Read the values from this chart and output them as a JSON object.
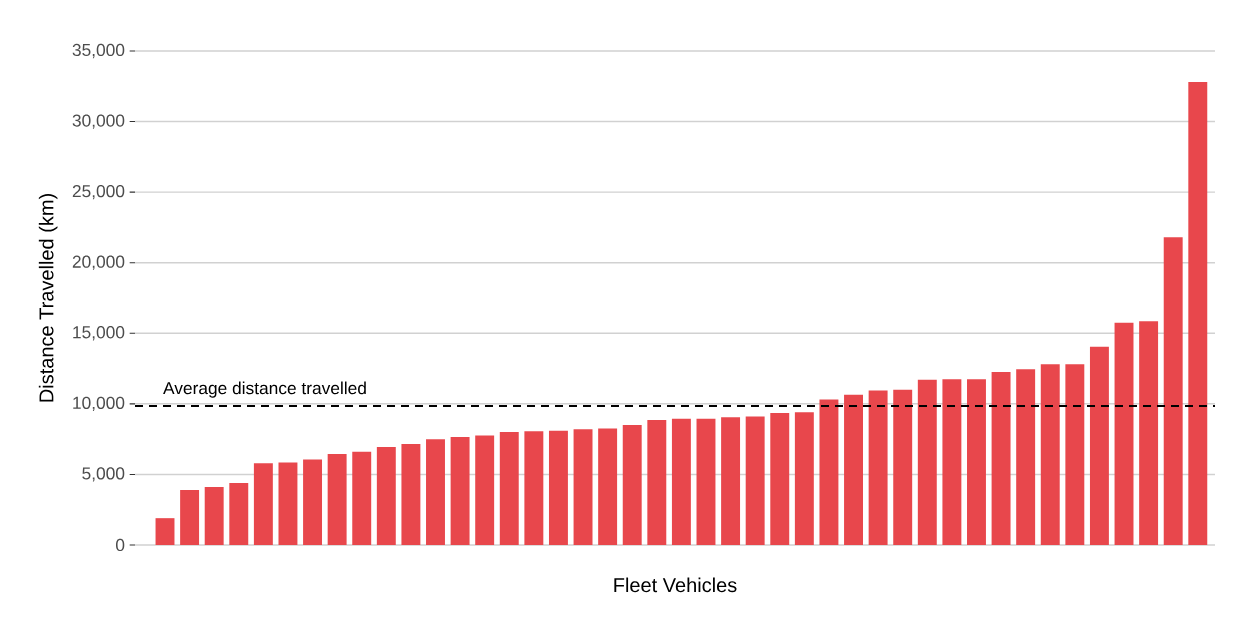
{
  "chart_data": {
    "type": "bar",
    "xlabel": "Fleet Vehicles",
    "ylabel": "Distance Travelled (km)",
    "categories": [
      null,
      null,
      null,
      null,
      null,
      null,
      null,
      null,
      null,
      null,
      null,
      null,
      null,
      null,
      null,
      null,
      null,
      null,
      null,
      null,
      null,
      null,
      null,
      null,
      null,
      null,
      null,
      null,
      null,
      null,
      null,
      null,
      null,
      null,
      null,
      null,
      null,
      null,
      null,
      null,
      null,
      null,
      null
    ],
    "values": [
      1900,
      3900,
      4100,
      4400,
      5800,
      5850,
      6050,
      6450,
      6600,
      6950,
      7150,
      7500,
      7650,
      7750,
      8000,
      8050,
      8100,
      8200,
      8250,
      8500,
      8850,
      8950,
      8950,
      9050,
      9100,
      9350,
      9400,
      10300,
      10650,
      10950,
      11000,
      11700,
      11750,
      11750,
      12250,
      12450,
      12800,
      12800,
      14050,
      15750,
      15850,
      21800,
      32800
    ],
    "color": "#e8474c",
    "ylim": [
      0,
      35000
    ],
    "yticks": [
      {
        "value": 0,
        "label": "0"
      },
      {
        "value": 5000,
        "label": "5,000"
      },
      {
        "value": 10000,
        "label": "10,000"
      },
      {
        "value": 15000,
        "label": "15,000"
      },
      {
        "value": 20000,
        "label": "20,000"
      },
      {
        "value": 25000,
        "label": "25,000"
      },
      {
        "value": 30000,
        "label": "30,000"
      },
      {
        "value": 35000,
        "label": "35,000"
      }
    ],
    "grid": "y",
    "ref_lines": [
      {
        "axis": "y",
        "value": 9850,
        "label": "Average distance travelled",
        "color": "#000000",
        "line_style": "dashed"
      }
    ]
  }
}
